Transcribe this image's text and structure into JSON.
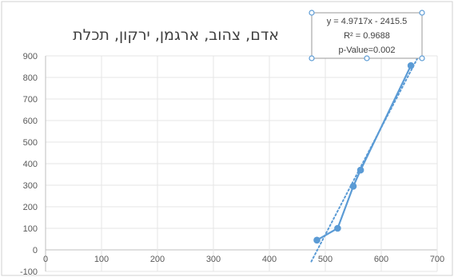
{
  "chart_data": {
    "type": "scatter",
    "title": "אדם, צהוב, ארגמן, ירקון, תכלת",
    "xlabel": "",
    "ylabel": "",
    "xlim": [
      0,
      700
    ],
    "ylim": [
      -100,
      900
    ],
    "x_ticks": [
      0,
      100,
      200,
      300,
      400,
      500,
      600,
      700
    ],
    "y_ticks": [
      -100,
      0,
      100,
      200,
      300,
      400,
      500,
      600,
      700,
      800,
      900
    ],
    "grid": true,
    "series": [
      {
        "points": [
          {
            "x": 485,
            "y": 45
          },
          {
            "x": 522,
            "y": 100
          },
          {
            "x": 550,
            "y": 295
          },
          {
            "x": 563,
            "y": 370
          },
          {
            "x": 653,
            "y": 855
          }
        ],
        "color": "#5B9BD5"
      }
    ],
    "trendline": {
      "slope": 4.9717,
      "intercept": -2415.5,
      "x_range": [
        475,
        665
      ],
      "color": "#5B9BD5",
      "style": "dotted"
    },
    "annotation_lines": [
      "y = 4.9717x - 2415.5",
      "R² = 0.9688",
      "p-Value=0.002"
    ]
  }
}
